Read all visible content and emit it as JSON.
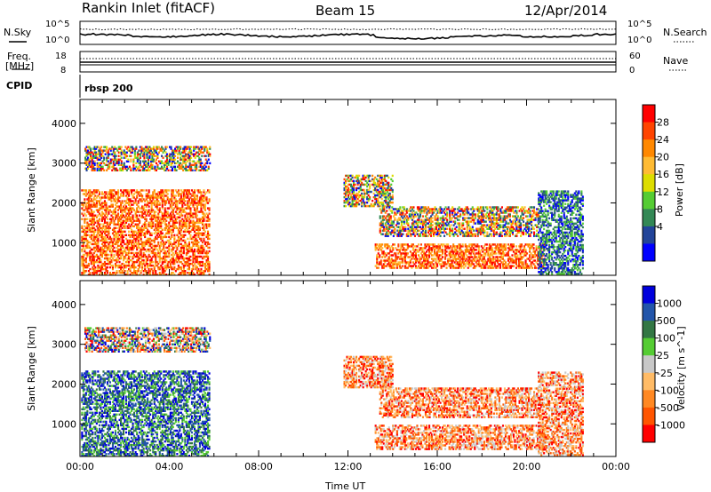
{
  "header": {
    "station": "Rankin Inlet (fitACF)",
    "beam": "Beam 15",
    "date": "12/Apr/2014"
  },
  "noise_panel": {
    "left_label": "N.Sky",
    "right_label": "N.Search",
    "left_ticks": [
      "10^5",
      "10^0"
    ],
    "right_ticks": [
      "10^5",
      "10^0"
    ]
  },
  "freq_panel": {
    "left_label_line1": "Freq.",
    "left_label_line2": "[MHz]",
    "right_label": "Nave",
    "left_ticks": [
      "18",
      "8"
    ],
    "right_ticks": [
      "60",
      "0"
    ]
  },
  "cpid": {
    "label": "CPID",
    "value": "rbsp 200"
  },
  "chart_data": [
    {
      "type": "heatmap",
      "title": "",
      "xlabel": "",
      "ylabel": "Slant Range [km]",
      "x_range_hours": [
        0,
        24
      ],
      "ylim": [
        180,
        4600
      ],
      "yticks": [
        1000,
        2000,
        3000,
        4000
      ],
      "colorbar": {
        "label": "Power [dB]",
        "ticks": [
          "28",
          "24",
          "20",
          "16",
          "12",
          "8",
          "4"
        ],
        "colors": [
          "#ff0000",
          "#ff4400",
          "#ff8800",
          "#ffbb33",
          "#dddd00",
          "#55cc33",
          "#338855",
          "#224499",
          "#0000ff"
        ]
      },
      "echo_regions": [
        {
          "t0": 0.05,
          "t1": 5.8,
          "r0": 180,
          "r1": 2300,
          "level": "high"
        },
        {
          "t0": 0.2,
          "t1": 5.8,
          "r0": 2800,
          "r1": 3400,
          "level": "mixed"
        },
        {
          "t0": 11.8,
          "t1": 14.0,
          "r0": 1900,
          "r1": 2700,
          "level": "mixed"
        },
        {
          "t0": 13.4,
          "t1": 20.5,
          "r0": 1150,
          "r1": 1900,
          "level": "mixed"
        },
        {
          "t0": 13.2,
          "t1": 20.8,
          "r0": 350,
          "r1": 950,
          "level": "high"
        },
        {
          "t0": 20.5,
          "t1": 22.5,
          "r0": 200,
          "r1": 2300,
          "level": "low"
        }
      ]
    },
    {
      "type": "heatmap",
      "title": "",
      "xlabel": "Time UT",
      "ylabel": "Slant Range [km]",
      "x_range_hours": [
        0,
        24
      ],
      "ylim": [
        180,
        4600
      ],
      "xticks": [
        "00:00",
        "04:00",
        "08:00",
        "12:00",
        "16:00",
        "20:00",
        "00:00"
      ],
      "yticks": [
        1000,
        2000,
        3000,
        4000
      ],
      "colorbar": {
        "label": "Velocity [m s^-1]",
        "ticks": [
          "1000",
          "500",
          "100",
          "25",
          "-25",
          "-100",
          "-500",
          "-1000"
        ],
        "colors": [
          "#0000dd",
          "#2255aa",
          "#337744",
          "#55cc33",
          "#c8c8c8",
          "#ffbb66",
          "#ff8822",
          "#ff5500",
          "#ff0000"
        ]
      },
      "echo_regions": [
        {
          "t0": 0.05,
          "t1": 5.8,
          "r0": 180,
          "r1": 2300,
          "level": "positive"
        },
        {
          "t0": 0.2,
          "t1": 5.8,
          "r0": 2800,
          "r1": 3400,
          "level": "mixed"
        },
        {
          "t0": 11.8,
          "t1": 14.0,
          "r0": 1900,
          "r1": 2700,
          "level": "negative"
        },
        {
          "t0": 13.4,
          "t1": 20.5,
          "r0": 1150,
          "r1": 1900,
          "level": "negative"
        },
        {
          "t0": 13.2,
          "t1": 20.8,
          "r0": 350,
          "r1": 950,
          "level": "negative"
        },
        {
          "t0": 20.5,
          "t1": 22.5,
          "r0": 200,
          "r1": 2300,
          "level": "negative"
        }
      ]
    }
  ]
}
